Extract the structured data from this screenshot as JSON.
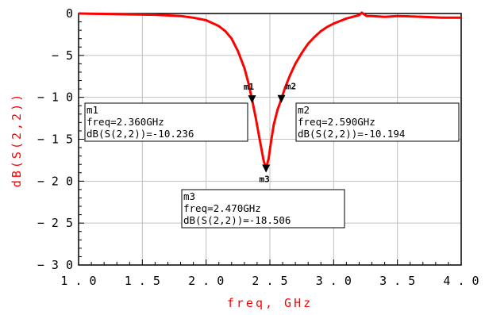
{
  "chart_data": {
    "type": "line",
    "xlabel": "freq, GHz",
    "ylabel": "dB(S(2,2))",
    "xlim": [
      1.0,
      4.0
    ],
    "ylim": [
      -30,
      0
    ],
    "x_ticks": [
      1.0,
      1.5,
      2.0,
      2.5,
      3.0,
      3.5,
      4.0
    ],
    "x_tick_labels": [
      "1.0",
      "1.5",
      "2.0",
      "2.5",
      "3.0",
      "3.5",
      "4.0"
    ],
    "y_ticks": [
      0,
      -5,
      -10,
      -15,
      -20,
      -25,
      -30
    ],
    "y_tick_labels": [
      "0",
      "-5",
      "-10",
      "-15",
      "-20",
      "-25",
      "-30"
    ],
    "grid": true,
    "series": [
      {
        "name": "dB(S(2,2))",
        "color": "#ff0000",
        "x": [
          1.0,
          1.2,
          1.4,
          1.6,
          1.8,
          1.9,
          2.0,
          2.1,
          2.15,
          2.2,
          2.25,
          2.3,
          2.33,
          2.36,
          2.39,
          2.42,
          2.45,
          2.47,
          2.49,
          2.51,
          2.53,
          2.56,
          2.59,
          2.62,
          2.66,
          2.7,
          2.75,
          2.8,
          2.85,
          2.9,
          2.95,
          3.0,
          3.05,
          3.1,
          3.15,
          3.2,
          3.22,
          3.24,
          3.26,
          3.3,
          3.4,
          3.5,
          3.7,
          3.85,
          4.0
        ],
        "y": [
          0.0,
          -0.05,
          -0.1,
          -0.15,
          -0.3,
          -0.5,
          -0.8,
          -1.5,
          -2.1,
          -3.0,
          -4.5,
          -6.5,
          -8.2,
          -10.236,
          -12.5,
          -15.0,
          -17.5,
          -18.506,
          -17.3,
          -15.2,
          -13.3,
          -11.5,
          -10.194,
          -8.8,
          -7.3,
          -6.0,
          -4.7,
          -3.6,
          -2.8,
          -2.1,
          -1.6,
          -1.2,
          -0.9,
          -0.6,
          -0.4,
          -0.2,
          0.1,
          -0.1,
          -0.3,
          -0.3,
          -0.4,
          -0.3,
          -0.4,
          -0.5,
          -0.5
        ]
      }
    ],
    "markers": [
      {
        "id": "m1",
        "x": 2.36,
        "y": -10.236,
        "label": "m1",
        "lines": [
          "m1",
          "freq=2.360GHz",
          "dB(S(2,2))=-10.236"
        ]
      },
      {
        "id": "m2",
        "x": 2.59,
        "y": -10.194,
        "label": "m2",
        "lines": [
          "m2",
          "freq=2.590GHz",
          "dB(S(2,2))=-10.194"
        ]
      },
      {
        "id": "m3",
        "x": 2.47,
        "y": -18.506,
        "label": "m3",
        "lines": [
          "m3",
          "freq=2.470GHz",
          "dB(S(2,2))=-18.506"
        ]
      }
    ]
  }
}
